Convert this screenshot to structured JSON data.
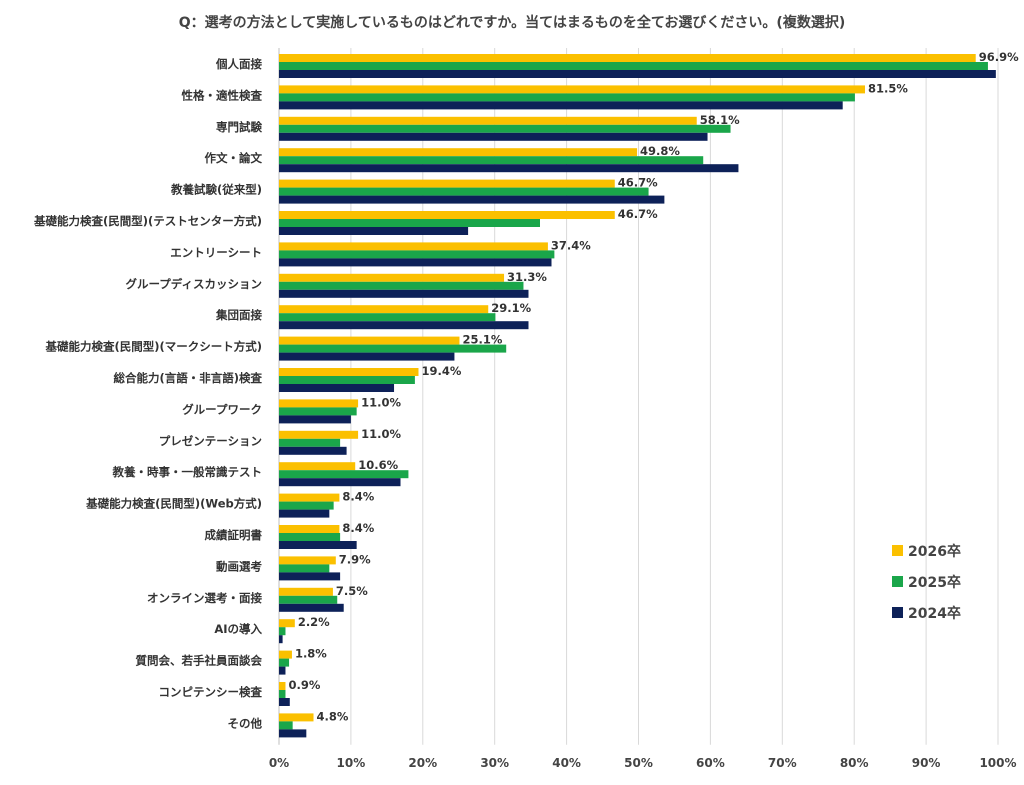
{
  "title": "Q：選考の方法として実施しているものはどれですか。当てはまるものを全てお選びください。(複数選択)",
  "chart_data": {
    "type": "bar",
    "orientation": "horizontal",
    "title": "Q：選考の方法として実施しているものはどれですか。当てはまるものを全てお選びください。(複数選択)",
    "categories": [
      "個人面接",
      "性格・適性検査",
      "専門試験",
      "作文・論文",
      "教養試験(従来型)",
      "基礎能力検査(民間型)(テストセンター方式)",
      "エントリーシート",
      "グループディスカッション",
      "集団面接",
      "基礎能力検査(民間型)(マークシート方式)",
      "総合能力(言語・非言語)検査",
      "グループワーク",
      "プレゼンテーション",
      "教養・時事・一般常識テスト",
      "基礎能力検査(民間型)(Web方式)",
      "成績証明書",
      "動画選考",
      "オンライン選考・面接",
      "AIの導入",
      "質問会、若手社員面談会",
      "コンピテンシー検査",
      "その他"
    ],
    "series": [
      {
        "name": "2026卒",
        "color": "#fbc000",
        "values": [
          96.9,
          81.5,
          58.1,
          49.8,
          46.7,
          46.7,
          37.4,
          31.3,
          29.1,
          25.1,
          19.4,
          11.0,
          11.0,
          10.6,
          8.4,
          8.4,
          7.9,
          7.5,
          2.2,
          1.8,
          0.9,
          4.8
        ],
        "labels": [
          "96.9%",
          "81.5%",
          "58.1%",
          "49.8%",
          "46.7%",
          "46.7%",
          "37.4%",
          "31.3%",
          "29.1%",
          "25.1%",
          "19.4%",
          "11.0%",
          "11.0%",
          "10.6%",
          "8.4%",
          "8.4%",
          "7.9%",
          "7.5%",
          "2.2%",
          "1.8%",
          "0.9%",
          "4.8%"
        ]
      },
      {
        "name": "2025卒",
        "color": "#1aa64a",
        "values": [
          98.6,
          80.1,
          62.8,
          59.0,
          51.4,
          36.3,
          38.3,
          34.0,
          30.1,
          31.6,
          18.9,
          10.8,
          8.5,
          18.0,
          7.6,
          8.5,
          7.0,
          8.1,
          0.9,
          1.4,
          0.9,
          1.9
        ]
      },
      {
        "name": "2024卒",
        "color": "#0d2158",
        "values": [
          99.7,
          78.4,
          59.6,
          63.9,
          53.6,
          26.3,
          37.9,
          34.7,
          34.7,
          24.4,
          16.0,
          10.0,
          9.4,
          16.9,
          7.0,
          10.8,
          8.5,
          9.0,
          0.5,
          0.9,
          1.5,
          3.8
        ]
      }
    ],
    "xlim": [
      0,
      100
    ],
    "xticks": [
      "0%",
      "10%",
      "20%",
      "30%",
      "40%",
      "50%",
      "60%",
      "70%",
      "80%",
      "90%",
      "100%"
    ],
    "xlabel": "",
    "ylabel": "",
    "grid": true,
    "legend_position": "bottom-right"
  }
}
